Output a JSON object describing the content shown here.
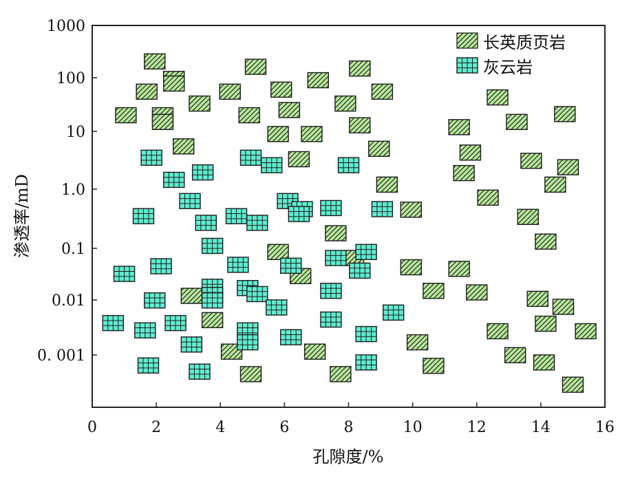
{
  "chart_data": {
    "type": "scatter",
    "xlabel": "孔隙度/%",
    "ylabel": "渗透率/mD",
    "xlim": [
      0,
      16
    ],
    "ylim": [
      0.0001,
      1000
    ],
    "yscale": "log",
    "grid": false,
    "legend_placement": "top-right",
    "x_ticks": [
      {
        "value": 0,
        "label": "0"
      },
      {
        "value": 2,
        "label": "2"
      },
      {
        "value": 4,
        "label": "4"
      },
      {
        "value": 6,
        "label": "6"
      },
      {
        "value": 8,
        "label": "8"
      },
      {
        "value": 10,
        "label": "10"
      },
      {
        "value": 12,
        "label": "12"
      },
      {
        "value": 14,
        "label": "14"
      },
      {
        "value": 16,
        "label": "16"
      }
    ],
    "y_ticks": [
      {
        "value": 1000,
        "label": "1000"
      },
      {
        "value": 100,
        "label": "100"
      },
      {
        "value": 10,
        "label": "10"
      },
      {
        "value": 1,
        "label": "1.0"
      },
      {
        "value": 0.1,
        "label": "0.1"
      },
      {
        "value": 0.01,
        "label": "0.01"
      },
      {
        "value": 0.001,
        "label": "0. 001"
      }
    ],
    "series": [
      {
        "name": "长英质页岩",
        "color": "#b7ea9a",
        "marker": "hatched-rect",
        "points": [
          [
            1.95,
            205
          ],
          [
            2.55,
            95
          ],
          [
            2.55,
            78
          ],
          [
            1.7,
            55
          ],
          [
            3.35,
            33
          ],
          [
            4.3,
            55
          ],
          [
            5.1,
            162
          ],
          [
            5.9,
            60
          ],
          [
            7.05,
            90
          ],
          [
            8.35,
            150
          ],
          [
            9.05,
            55
          ],
          [
            1.05,
            20
          ],
          [
            2.2,
            20
          ],
          [
            2.2,
            15
          ],
          [
            4.9,
            20
          ],
          [
            6.15,
            25
          ],
          [
            7.9,
            33
          ],
          [
            8.35,
            13
          ],
          [
            5.8,
            9
          ],
          [
            6.85,
            9
          ],
          [
            2.85,
            5.5
          ],
          [
            6.45,
            3.3
          ],
          [
            8.95,
            5
          ],
          [
            11.45,
            12
          ],
          [
            12.65,
            43
          ],
          [
            13.25,
            15
          ],
          [
            14.75,
            21
          ],
          [
            11.8,
            4.3
          ],
          [
            11.6,
            1.9
          ],
          [
            13.7,
            3.1
          ],
          [
            14.85,
            2.4
          ],
          [
            9.2,
            1.2
          ],
          [
            14.45,
            1.2
          ],
          [
            12.35,
            0.72
          ],
          [
            9.95,
            0.45
          ],
          [
            13.6,
            0.34
          ],
          [
            7.6,
            0.18
          ],
          [
            14.15,
            0.13
          ],
          [
            5.8,
            0.085
          ],
          [
            8.15,
            0.065
          ],
          [
            9.95,
            0.043
          ],
          [
            11.45,
            0.04
          ],
          [
            6.5,
            0.029
          ],
          [
            10.65,
            0.015
          ],
          [
            12.0,
            0.014
          ],
          [
            13.9,
            0.0105
          ],
          [
            3.1,
            0.012
          ],
          [
            3.75,
            0.0043
          ],
          [
            14.7,
            0.0075
          ],
          [
            14.15,
            0.0037
          ],
          [
            12.65,
            0.0027
          ],
          [
            15.4,
            0.0027
          ],
          [
            10.15,
            0.0017
          ],
          [
            4.35,
            0.00115
          ],
          [
            6.95,
            0.00115
          ],
          [
            13.2,
            0.00099
          ],
          [
            10.65,
            0.00062
          ],
          [
            14.1,
            0.00072
          ],
          [
            4.95,
            0.00043
          ],
          [
            7.75,
            0.00043
          ],
          [
            15.0,
            0.00027
          ]
        ]
      },
      {
        "name": "灰云岩",
        "color": "#5fecd0",
        "marker": "grid-rect",
        "points": [
          [
            1.85,
            3.5
          ],
          [
            4.95,
            3.5
          ],
          [
            5.6,
            2.6
          ],
          [
            8.0,
            2.6
          ],
          [
            3.45,
            1.95
          ],
          [
            2.55,
            1.45
          ],
          [
            3.05,
            0.63
          ],
          [
            6.1,
            0.63
          ],
          [
            6.55,
            0.46
          ],
          [
            6.45,
            0.38
          ],
          [
            7.45,
            0.48
          ],
          [
            9.05,
            0.46
          ],
          [
            1.6,
            0.35
          ],
          [
            4.5,
            0.35
          ],
          [
            3.55,
            0.27
          ],
          [
            5.15,
            0.27
          ],
          [
            3.75,
            0.11
          ],
          [
            8.55,
            0.085
          ],
          [
            7.6,
            0.065
          ],
          [
            4.55,
            0.048
          ],
          [
            6.2,
            0.046
          ],
          [
            2.15,
            0.045
          ],
          [
            8.35,
            0.037
          ],
          [
            1.0,
            0.032
          ],
          [
            3.75,
            0.018
          ],
          [
            4.85,
            0.017
          ],
          [
            3.75,
            0.0125
          ],
          [
            7.45,
            0.015
          ],
          [
            5.15,
            0.013
          ],
          [
            1.95,
            0.0098
          ],
          [
            3.75,
            0.0098
          ],
          [
            5.75,
            0.0073
          ],
          [
            9.4,
            0.0059
          ],
          [
            0.65,
            0.0038
          ],
          [
            2.6,
            0.0038
          ],
          [
            7.45,
            0.0044
          ],
          [
            4.85,
            0.0028
          ],
          [
            1.65,
            0.0028
          ],
          [
            8.55,
            0.0024
          ],
          [
            6.2,
            0.0021
          ],
          [
            4.85,
            0.0017
          ],
          [
            3.1,
            0.00155
          ],
          [
            8.55,
            0.00072
          ],
          [
            1.75,
            0.00063
          ],
          [
            3.35,
            0.00048
          ]
        ]
      }
    ]
  }
}
